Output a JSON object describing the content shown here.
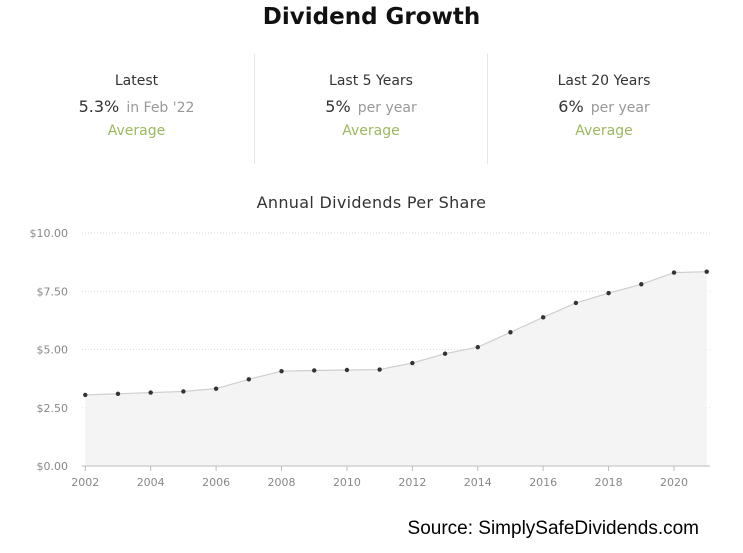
{
  "header": {
    "title": "Dividend Growth"
  },
  "stats": [
    {
      "label": "Latest",
      "value": "5.3%",
      "suffix": "in Feb '22",
      "rating": "Average"
    },
    {
      "label": "Last 5 Years",
      "value": "5%",
      "suffix": "per year",
      "rating": "Average"
    },
    {
      "label": "Last 20 Years",
      "value": "6%",
      "suffix": "per year",
      "rating": "Average"
    }
  ],
  "colors": {
    "rating": "#9cb85e",
    "area_fill": "#f4f4f4",
    "line": "#cfcfcf",
    "point": "#333333",
    "grid": "#d9d9d9"
  },
  "source": "Source: SimplySafeDividends.com",
  "chart_data": {
    "type": "area",
    "title": "Annual Dividends Per Share",
    "xlabel": "",
    "ylabel": "",
    "x": [
      2002,
      2003,
      2004,
      2005,
      2006,
      2007,
      2008,
      2009,
      2010,
      2011,
      2012,
      2013,
      2014,
      2015,
      2016,
      2017,
      2018,
      2019,
      2020,
      2021
    ],
    "series": [
      {
        "values": [
          3.05,
          3.1,
          3.15,
          3.2,
          3.32,
          3.72,
          4.07,
          4.1,
          4.12,
          4.14,
          4.42,
          4.82,
          5.1,
          5.74,
          6.38,
          7.0,
          7.42,
          7.8,
          8.3,
          8.34
        ]
      }
    ],
    "xlim": [
      2001.9,
      2021.1
    ],
    "ylim": [
      0,
      10
    ],
    "x_ticks": [
      2002,
      2004,
      2006,
      2008,
      2010,
      2012,
      2014,
      2016,
      2018,
      2020
    ],
    "y_ticks": [
      "$0.00",
      "$2.50",
      "$5.00",
      "$7.50",
      "$10.00"
    ],
    "y_tick_values": [
      0,
      2.5,
      5,
      7.5,
      10
    ],
    "grid": true,
    "legend": "none"
  }
}
